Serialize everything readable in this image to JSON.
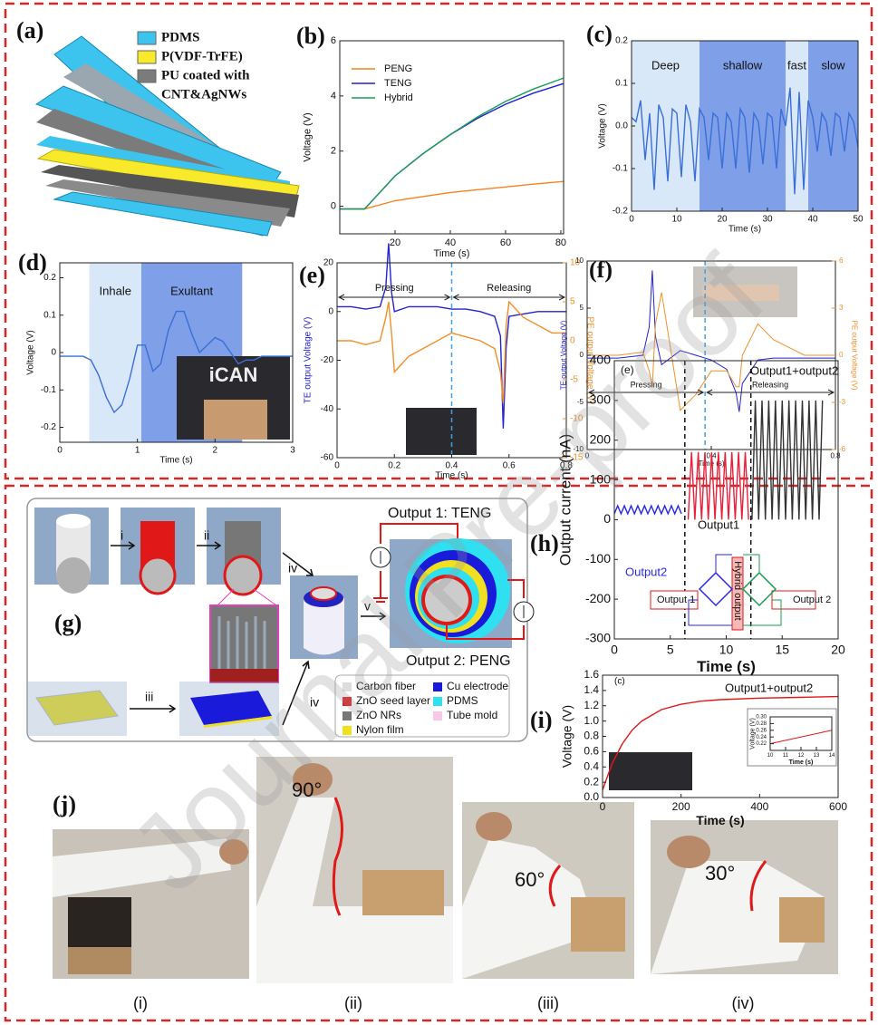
{
  "figure": {
    "a": {
      "label": "(a)",
      "legend": [
        {
          "name": "PDMS",
          "color": "#3cc3ee"
        },
        {
          "name": "P(VDF-TrFE)",
          "color": "#f8ea2a"
        },
        {
          "name": "PU coated with",
          "color": "#7b7b7b"
        },
        {
          "name": "CNT&AgNWs"
        }
      ]
    },
    "g": {
      "label": "(g)",
      "steps": [
        "i",
        "ii",
        "iii",
        "iv",
        "iv",
        "v"
      ],
      "outputs": [
        "Output 1: TENG",
        "Output 2: PENG"
      ],
      "legend": [
        {
          "name": "Carbon fiber",
          "color": "#dddddd"
        },
        {
          "name": "ZnO seed layer",
          "color": "#e02020"
        },
        {
          "name": "ZnO NRs",
          "color": "#777777"
        },
        {
          "name": "Nylon film",
          "color": "#f0e020"
        },
        {
          "name": "Cu electrode",
          "color": "#1a1adb"
        },
        {
          "name": "PDMS",
          "color": "#2ee0f0"
        },
        {
          "name": "Tube mold",
          "color": "#f9c8e8"
        }
      ]
    },
    "j": {
      "label": "(j)",
      "angles": [
        "90°",
        "60°",
        "30°"
      ],
      "captions": [
        "(i)",
        "(ii)",
        "(iii)",
        "(iv)"
      ]
    },
    "watermark": "Journal Pre-proof"
  },
  "chart_data": [
    {
      "type": "line",
      "panel": "(b)",
      "xlabel": "Time (s)",
      "ylabel": "Voltage (V)",
      "xlim": [
        0,
        81
      ],
      "xticks": [
        20,
        40,
        60,
        80
      ],
      "ylim": [
        -1,
        6
      ],
      "yticks": [
        0,
        2,
        4,
        6
      ],
      "series": [
        {
          "name": "PENG",
          "color": "#f5821f",
          "x": [
            0,
            9,
            20,
            30,
            40,
            50,
            60,
            70,
            81
          ],
          "values": [
            -0.1,
            -0.1,
            0.2,
            0.35,
            0.5,
            0.6,
            0.7,
            0.8,
            0.9
          ]
        },
        {
          "name": "TENG",
          "color": "#1f1fd6",
          "x": [
            0,
            9,
            20,
            30,
            40,
            50,
            60,
            70,
            81
          ],
          "values": [
            -0.1,
            -0.1,
            1.1,
            1.9,
            2.6,
            3.2,
            3.7,
            4.1,
            4.45
          ]
        },
        {
          "name": "Hybrid",
          "color": "#1a9e50",
          "x": [
            0,
            9,
            20,
            30,
            40,
            50,
            60,
            70,
            81
          ],
          "values": [
            -0.1,
            -0.1,
            1.1,
            1.9,
            2.6,
            3.25,
            3.8,
            4.25,
            4.65
          ]
        }
      ]
    },
    {
      "type": "line",
      "panel": "(c)",
      "xlabel": "Time (s)",
      "ylabel": "Voltage (V)",
      "xlim": [
        0,
        50
      ],
      "xticks": [
        0,
        10,
        20,
        30,
        40,
        50
      ],
      "ylim": [
        -0.2,
        0.2
      ],
      "yticks": [
        -0.2,
        -0.1,
        {
          "value": 0,
          "label": "0.0"
        },
        0.1,
        0.2
      ],
      "regions": [
        {
          "label": "Deep",
          "x0": 0,
          "x1": 15,
          "color": "#d9e8f8"
        },
        {
          "label": "shallow",
          "x0": 15,
          "x1": 34,
          "color": "#7f9fe9"
        },
        {
          "label": "fast",
          "x0": 34,
          "x1": 39,
          "color": "#d9e8f8"
        },
        {
          "label": "slow",
          "x0": 39,
          "x1": 50,
          "color": "#7f9fe9"
        }
      ],
      "x": [
        0,
        1,
        2,
        3,
        4,
        5,
        6,
        7,
        8,
        9,
        10,
        11,
        12,
        13,
        14,
        15,
        16,
        17,
        18,
        19,
        20,
        21,
        22,
        23,
        24,
        25,
        26,
        27,
        28,
        29,
        30,
        31,
        32,
        33,
        34,
        35,
        36,
        37,
        38,
        39,
        40,
        41,
        42,
        43,
        44,
        45,
        46,
        47,
        48,
        49,
        50
      ],
      "series": [
        {
          "color": "#3a6fd8",
          "values": [
            0.02,
            0.01,
            0.06,
            -0.08,
            0.03,
            -0.15,
            0.05,
            0.02,
            -0.13,
            0.04,
            0.03,
            -0.12,
            0.05,
            0.01,
            -0.13,
            0.04,
            0.02,
            -0.08,
            0.03,
            0.02,
            -0.1,
            0.03,
            0.01,
            -0.1,
            0.04,
            0.02,
            -0.11,
            0.03,
            0.01,
            -0.09,
            0.03,
            0.02,
            -0.1,
            0.04,
            0.0,
            0.09,
            -0.16,
            0.08,
            -0.15,
            0.06,
            0.02,
            -0.06,
            0.03,
            0.01,
            -0.07,
            0.03,
            0.02,
            -0.06,
            0.03,
            0.01,
            -0.05
          ]
        }
      ]
    },
    {
      "type": "line",
      "panel": "(d)",
      "xlabel": "Time (s)",
      "ylabel": "Voltage (V)",
      "xlim": [
        0,
        3
      ],
      "xticks": [
        0,
        1,
        2,
        3
      ],
      "ylim": [
        -0.24,
        0.24
      ],
      "yticks": [
        -0.2,
        -0.1,
        0,
        0.1,
        0.2
      ],
      "regions": [
        {
          "label": "Inhale",
          "x0": 0.38,
          "x1": 1.05,
          "color": "#d9e8f8"
        },
        {
          "label": "Exultant",
          "x0": 1.05,
          "x1": 2.35,
          "color": "#7f9fe9"
        }
      ],
      "inset_text": "iCAN",
      "x": [
        0,
        0.1,
        0.2,
        0.3,
        0.4,
        0.5,
        0.6,
        0.7,
        0.8,
        0.9,
        1,
        1.1,
        1.2,
        1.3,
        1.4,
        1.5,
        1.6,
        1.7,
        1.8,
        1.9,
        2,
        2.1,
        2.2,
        2.3,
        2.4,
        2.5,
        2.6,
        2.7,
        2.8,
        2.9,
        3
      ],
      "series": [
        {
          "color": "#3a6fd8",
          "values": [
            -0.01,
            -0.01,
            -0.01,
            -0.01,
            -0.02,
            -0.06,
            -0.12,
            -0.16,
            -0.14,
            -0.07,
            0.02,
            0.02,
            -0.05,
            -0.03,
            0.06,
            0.11,
            0.11,
            0.05,
            0.0,
            0.02,
            0.04,
            0.03,
            0.0,
            -0.03,
            -0.02,
            -0.02,
            -0.01,
            -0.01,
            -0.01,
            -0.01,
            -0.01
          ]
        }
      ]
    },
    {
      "type": "line",
      "panel": "(e)",
      "xlabel": "Time (s)",
      "ylabel": "TE output Voltage (V)",
      "y2label": "PE output Voltage (V)",
      "xlim": [
        0,
        0.8
      ],
      "xticks": [
        0,
        0.2,
        0.4,
        0.6,
        0.8
      ],
      "ylim": [
        -60,
        20
      ],
      "yticks": [
        -60,
        -40,
        -20,
        0,
        20
      ],
      "y2lim": [
        -15,
        10
      ],
      "y2ticks": [
        -15,
        -10,
        -5,
        0,
        5,
        10
      ],
      "phases": [
        "Pressing",
        "Releasing"
      ],
      "vlines": [
        0.4
      ],
      "vline_color": "#3aa0e8",
      "x": [
        0,
        0.05,
        0.1,
        0.15,
        0.17,
        0.18,
        0.19,
        0.2,
        0.25,
        0.3,
        0.35,
        0.4,
        0.45,
        0.5,
        0.55,
        0.57,
        0.58,
        0.59,
        0.6,
        0.65,
        0.7,
        0.75,
        0.8
      ],
      "series": [
        {
          "color": "#2323d0",
          "values": [
            2,
            2,
            1,
            2,
            10,
            28,
            8,
            0,
            2,
            2,
            2,
            1,
            1,
            0,
            -2,
            -10,
            -48,
            -15,
            -2,
            -1,
            0,
            0,
            0
          ]
        },
        {
          "color": "#f0902a",
          "axis": "y2",
          "values": [
            0,
            0,
            -0.5,
            0,
            3,
            5,
            1,
            -4,
            -2,
            -1,
            0,
            1,
            0.5,
            0,
            -1,
            -4,
            -8,
            2,
            5,
            3,
            2,
            1,
            1
          ]
        }
      ]
    },
    {
      "type": "line",
      "panel": "(f)",
      "xlabel": "Time (s)",
      "ylabel": "TE output Voltage (V)",
      "y2label": "PE output Voltage (V)",
      "xlim": [
        0,
        0.8
      ],
      "xticks": [
        0,
        0.4,
        0.8
      ],
      "ylim": [
        -10,
        10
      ],
      "yticks": [
        -10,
        -5,
        0,
        5,
        10
      ],
      "y2lim": [
        -6,
        6
      ],
      "y2ticks": [
        -6,
        -3,
        0,
        3,
        6
      ],
      "phases": [
        "Pressing",
        "Releasing"
      ],
      "vlines": [
        0.38
      ],
      "vline_color": "#3aa0e8",
      "x": [
        0,
        0.1,
        0.18,
        0.2,
        0.21,
        0.22,
        0.24,
        0.3,
        0.35,
        0.4,
        0.45,
        0.48,
        0.49,
        0.5,
        0.55,
        0.6,
        0.7,
        0.8
      ],
      "series": [
        {
          "color": "#2323d0",
          "values": [
            -0.3,
            -0.3,
            0,
            3,
            9,
            2,
            -1,
            0.5,
            0,
            -0.5,
            -1.5,
            -4,
            -6,
            -3,
            -0.5,
            -0.3,
            -0.3,
            -0.3
          ]
        },
        {
          "color": "#f0902a",
          "axis": "y2",
          "values": [
            0,
            0,
            0.2,
            -1,
            -2,
            2,
            4,
            -3.5,
            -2.5,
            -1,
            -1,
            -2,
            -2,
            0,
            2,
            1,
            0,
            0
          ]
        }
      ]
    },
    {
      "type": "line",
      "panel": "(h)",
      "xlabel": "Time (s)",
      "ylabel": "Output current (nA)",
      "xlim": [
        0,
        20
      ],
      "xticks": [
        0,
        5,
        10,
        15,
        20
      ],
      "ylim": [
        -300,
        400
      ],
      "yticks": [
        -300,
        -200,
        -100,
        0,
        100,
        200,
        300,
        400
      ],
      "vlines": [
        6.3,
        12.2
      ],
      "vline_color": "#111111",
      "annotations": [
        "(e)",
        "Output2",
        "Output1",
        "Output1+output2",
        "Output 1",
        "Hybrid output",
        "Output 2"
      ],
      "series": [
        {
          "color": "#2a2ae0",
          "x": [
            0,
            0.3,
            0.6,
            0.9,
            1.2,
            1.5,
            1.8,
            2.1,
            2.4,
            2.7,
            3,
            3.3,
            3.6,
            3.9,
            4.2,
            4.5,
            4.8,
            5.1,
            5.4,
            5.7,
            6
          ],
          "values": [
            15,
            35,
            15,
            35,
            15,
            35,
            15,
            35,
            15,
            35,
            15,
            35,
            15,
            35,
            15,
            35,
            15,
            35,
            15,
            35,
            15
          ]
        },
        {
          "color": "#e8203a",
          "x": [
            6.6,
            6.9,
            7.2,
            7.5,
            7.8,
            8.1,
            8.4,
            8.7,
            9,
            9.3,
            9.6,
            9.9,
            10.2,
            10.5,
            10.8,
            11.1,
            11.4,
            11.7,
            12
          ],
          "values": [
            0,
            170,
            0,
            170,
            0,
            170,
            0,
            170,
            0,
            170,
            0,
            170,
            0,
            170,
            0,
            170,
            0,
            170,
            0
          ]
        },
        {
          "color": "#333333",
          "x": [
            12.3,
            12.6,
            12.9,
            13.2,
            13.5,
            13.8,
            14.1,
            14.4,
            14.7,
            15,
            15.3,
            15.6,
            15.9,
            16.2,
            16.5,
            16.8,
            17.1,
            17.4,
            17.7,
            18,
            18.3,
            18.6
          ],
          "values": [
            0,
            300,
            0,
            300,
            0,
            300,
            0,
            300,
            0,
            300,
            0,
            300,
            0,
            300,
            0,
            300,
            0,
            300,
            0,
            300,
            0,
            300
          ]
        }
      ]
    },
    {
      "type": "line",
      "panel": "(i)",
      "xlabel": "Time (s)",
      "ylabel": "Voltage (V)",
      "xlim": [
        0,
        600
      ],
      "xticks": [
        0,
        200,
        400,
        600
      ],
      "ylim": [
        0,
        1.6
      ],
      "yticks": [
        {
          "value": 0,
          "label": "0.0"
        },
        0.2,
        0.4,
        0.6,
        0.8,
        {
          "value": 1,
          "label": "1.0"
        },
        1.2,
        1.4,
        1.6
      ],
      "annotations": [
        "(c)",
        "Output1+output2"
      ],
      "series": [
        {
          "color": "#e01818",
          "x": [
            0,
            25,
            50,
            75,
            100,
            150,
            200,
            250,
            300,
            400,
            500,
            600
          ],
          "values": [
            0.1,
            0.45,
            0.7,
            0.88,
            1.0,
            1.15,
            1.22,
            1.26,
            1.28,
            1.3,
            1.31,
            1.32
          ]
        }
      ]
    },
    {
      "type": "line",
      "xlabel": "Time (s)",
      "ylabel": "Voltage (V)",
      "xlim": [
        10,
        14
      ],
      "xticks": [
        10,
        11,
        12,
        13,
        14
      ],
      "ylim": [
        0.2,
        0.3
      ],
      "yticks": [
        0.22,
        0.24,
        0.26,
        0.28,
        {
          "value": 0.3,
          "label": "0.30"
        }
      ],
      "series": [
        {
          "color": "#e01818",
          "x": [
            10,
            11,
            12,
            13,
            14
          ],
          "values": [
            0.22,
            0.23,
            0.24,
            0.25,
            0.26
          ]
        }
      ]
    }
  ]
}
